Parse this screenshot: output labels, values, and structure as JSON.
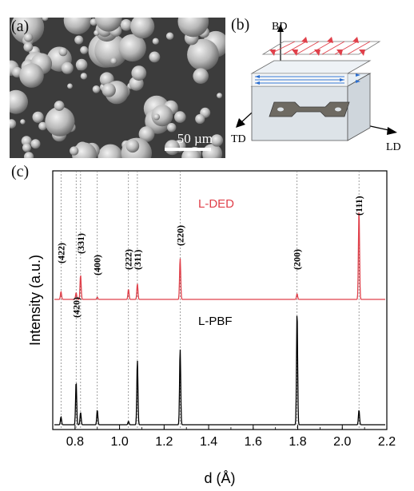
{
  "panel_a": {
    "label": "(a)",
    "scale_bar": "50 µm"
  },
  "panel_b": {
    "label": "(b)",
    "axes": {
      "bd": "BD",
      "td": "TD",
      "ld": "LD"
    }
  },
  "panel_c": {
    "label": "(c)"
  },
  "chart_data": {
    "type": "line",
    "xlabel": "d (Å)",
    "ylabel": "Intensity (a.u.)",
    "xlim": [
      0.7,
      2.2
    ],
    "xticks": [
      "0.8",
      "1.0",
      "1.2",
      "1.4",
      "1.6",
      "1.8",
      "2.0",
      "2.2"
    ],
    "reference_lines": [
      0.737,
      0.805,
      0.825,
      0.9,
      1.04,
      1.08,
      1.272,
      1.797,
      2.075
    ],
    "series": [
      {
        "name": "L-DED",
        "color": "#e0404a",
        "peaks": [
          {
            "d": 0.737,
            "height": 0.07
          },
          {
            "d": 0.805,
            "height": 0.06
          },
          {
            "d": 0.825,
            "height": 0.22
          },
          {
            "d": 0.9,
            "height": 0.02
          },
          {
            "d": 1.04,
            "height": 0.09
          },
          {
            "d": 1.08,
            "height": 0.14
          },
          {
            "d": 1.272,
            "height": 0.37
          },
          {
            "d": 1.797,
            "height": 0.05
          },
          {
            "d": 2.075,
            "height": 0.8
          }
        ]
      },
      {
        "name": "L-PBF",
        "color": "#000000",
        "peaks": [
          {
            "d": 0.737,
            "height": 0.07
          },
          {
            "d": 0.805,
            "height": 0.38
          },
          {
            "d": 0.825,
            "height": 0.11
          },
          {
            "d": 0.9,
            "height": 0.13
          },
          {
            "d": 1.04,
            "height": 0.03
          },
          {
            "d": 1.08,
            "height": 0.57
          },
          {
            "d": 1.272,
            "height": 0.67
          },
          {
            "d": 1.797,
            "height": 1.0
          },
          {
            "d": 2.075,
            "height": 0.13
          }
        ]
      }
    ],
    "peak_labels": [
      {
        "text": "(422)",
        "d": 0.737
      },
      {
        "text": "(420)",
        "d": 0.805
      },
      {
        "text": "(331)",
        "d": 0.825
      },
      {
        "text": "(400)",
        "d": 0.9
      },
      {
        "text": "(222)",
        "d": 1.04
      },
      {
        "text": "(311)",
        "d": 1.08
      },
      {
        "text": "(220)",
        "d": 1.272
      },
      {
        "text": "(200)",
        "d": 1.797
      },
      {
        "text": "(111)",
        "d": 2.075
      }
    ]
  }
}
